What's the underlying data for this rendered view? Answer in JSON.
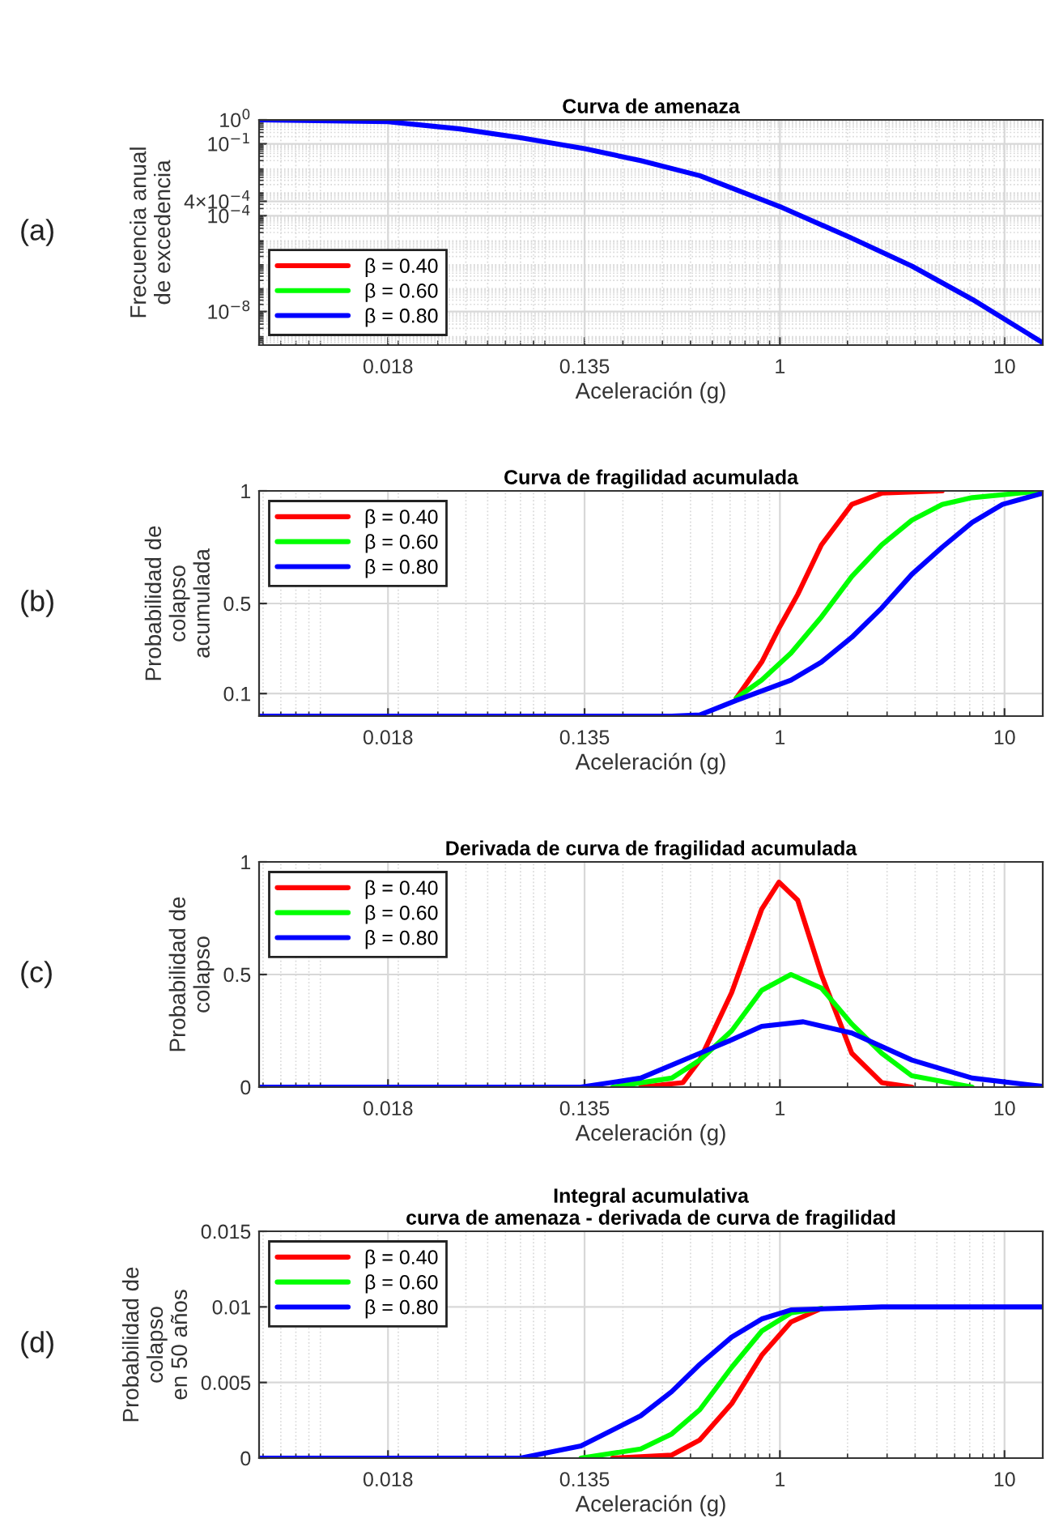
{
  "chart_data": [
    {
      "type": "line",
      "title": "Curva de amenaza",
      "xlabel": "Aceleración (g)",
      "ylabel": "Frecuencia anual\nde excedencia",
      "log": "xy",
      "grid": true,
      "legend": "bottom left",
      "xlim": [
        0.0048,
        14.8
      ],
      "xticks": [
        0.018,
        0.135,
        1,
        10
      ],
      "ylim": [
        4e-10,
        1
      ],
      "yticks": [
        {
          "value": 1e-08,
          "label": "10$^{−8}$"
        },
        {
          "value": 0.0001,
          "label": "10$^{−4}$"
        },
        {
          "value": 0.0004,
          "label": "4×10$^{−4}$"
        },
        {
          "value": 0.1,
          "label": "10$^{−1}$"
        },
        {
          "value": 1,
          "label": "10$^{0}$"
        }
      ],
      "annotations": [
        "(a)"
      ],
      "series": [
        {
          "name": "β = 0.40",
          "color": "#ff0000"
        },
        {
          "name": "β = 0.60",
          "color": "#00ff00"
        },
        {
          "name": "β = 0.80",
          "color": "#0000ff",
          "x": [
            0.0048,
            0.018,
            0.0376,
            0.07,
            0.135,
            0.24,
            0.44,
            1,
            2.07,
            3.87,
            7.2,
            14.8
          ],
          "values": [
            1,
            0.84,
            0.42,
            0.18,
            0.063,
            0.02,
            0.0047,
            0.00024,
            1.2e-05,
            7.9e-07,
            3.2e-08,
            5e-10
          ]
        }
      ]
    },
    {
      "type": "line",
      "title": "Curva de fragilidad acumulada",
      "xlabel": "Aceleración (g)",
      "ylabel": "Probabilidad de\ncolapso\nacumulada",
      "log": "x",
      "grid": true,
      "legend": "top left",
      "xlim": [
        0.0048,
        14.8
      ],
      "xticks": [
        0.018,
        0.135,
        1,
        10
      ],
      "ylim": [
        0,
        1
      ],
      "yticks": [
        0.1,
        0.5,
        1
      ],
      "annotations": [
        "(b)"
      ],
      "series": [
        {
          "name": "β = 0.40",
          "color": "#ff0000",
          "x": [
            0.64,
            0.83,
            0.99,
            1.2,
            1.53,
            2.09,
            2.84,
            5.28
          ],
          "values": [
            0.08,
            0.24,
            0.39,
            0.54,
            0.76,
            0.94,
            0.99,
            1
          ]
        },
        {
          "name": "β = 0.60",
          "color": "#00ff00",
          "x": [
            0.64,
            0.83,
            1.12,
            1.53,
            2.09,
            2.84,
            3.87,
            5.28,
            7.18,
            14.8
          ],
          "values": [
            0.08,
            0.16,
            0.28,
            0.44,
            0.62,
            0.76,
            0.87,
            0.94,
            0.97,
            1
          ]
        },
        {
          "name": "β = 0.80",
          "color": "#0000ff",
          "x": [
            0.0048,
            0.33,
            0.44,
            0.64,
            1.12,
            1.53,
            2.09,
            2.84,
            3.87,
            5.28,
            7.18,
            9.8,
            14.8
          ],
          "values": [
            0,
            0,
            0.005,
            0.07,
            0.16,
            0.24,
            0.35,
            0.48,
            0.63,
            0.75,
            0.86,
            0.94,
            0.99
          ]
        }
      ]
    },
    {
      "type": "line",
      "title": "Derivada de curva de fragilidad acumulada",
      "xlabel": "Aceleración (g)",
      "ylabel": "Probabilidad de\ncolapso",
      "log": "x",
      "grid": true,
      "legend": "top left",
      "xlim": [
        0.0048,
        14.8
      ],
      "xticks": [
        0.018,
        0.135,
        1,
        10
      ],
      "ylim": [
        0,
        1
      ],
      "yticks": [
        0,
        0.5,
        1
      ],
      "annotations": [
        "(c)"
      ],
      "series": [
        {
          "name": "β = 0.40",
          "color": "#ff0000",
          "x": [
            0.24,
            0.37,
            0.44,
            0.61,
            0.83,
            0.99,
            1.2,
            1.53,
            2.09,
            2.84,
            3.87
          ],
          "values": [
            0,
            0.02,
            0.12,
            0.42,
            0.79,
            0.91,
            0.83,
            0.5,
            0.15,
            0.02,
            0
          ]
        },
        {
          "name": "β = 0.60",
          "color": "#00ff00",
          "x": [
            0.18,
            0.33,
            0.44,
            0.61,
            0.83,
            1.12,
            1.53,
            2.09,
            2.84,
            3.87,
            7.18
          ],
          "values": [
            0,
            0.04,
            0.12,
            0.25,
            0.43,
            0.5,
            0.44,
            0.28,
            0.15,
            0.05,
            0
          ]
        },
        {
          "name": "β = 0.80",
          "color": "#0000ff",
          "x": [
            0.0048,
            0.13,
            0.24,
            0.44,
            0.61,
            0.83,
            1.27,
            2.09,
            3.87,
            7.18,
            14.8
          ],
          "values": [
            0,
            0,
            0.04,
            0.15,
            0.21,
            0.27,
            0.29,
            0.24,
            0.12,
            0.04,
            0.003
          ]
        }
      ]
    },
    {
      "type": "line",
      "title": "Integral acumulativa\ncurva de amenaza - derivada de curva de fragilidad",
      "xlabel": "Aceleración (g)",
      "ylabel": "Probabilidad de\ncolapso\nen 50 años",
      "log": "x",
      "grid": true,
      "legend": "top left",
      "xlim": [
        0.0048,
        14.8
      ],
      "xticks": [
        0.018,
        0.135,
        1,
        10
      ],
      "ylim": [
        0,
        0.015
      ],
      "yticks": [
        0,
        0.005,
        0.01,
        0.015
      ],
      "annotations": [
        "(d)"
      ],
      "series": [
        {
          "name": "β = 0.40",
          "color": "#ff0000",
          "x": [
            0.18,
            0.33,
            0.44,
            0.61,
            0.83,
            1.12,
            1.53
          ],
          "values": [
            0,
            0.0002,
            0.0012,
            0.0036,
            0.0068,
            0.009,
            0.0099
          ]
        },
        {
          "name": "β = 0.60",
          "color": "#00ff00",
          "x": [
            0.13,
            0.24,
            0.33,
            0.44,
            0.61,
            0.83,
            1.12,
            1.53
          ],
          "values": [
            0,
            0.0006,
            0.0016,
            0.0032,
            0.006,
            0.0084,
            0.0096,
            0.0099
          ]
        },
        {
          "name": "β = 0.80",
          "color": "#0000ff",
          "x": [
            0.0048,
            0.07,
            0.13,
            0.24,
            0.33,
            0.44,
            0.61,
            0.83,
            1.12,
            2.84,
            14.8
          ],
          "values": [
            0,
            0,
            0.0008,
            0.0028,
            0.0044,
            0.0062,
            0.008,
            0.0092,
            0.0098,
            0.01,
            0.01
          ]
        }
      ]
    }
  ]
}
